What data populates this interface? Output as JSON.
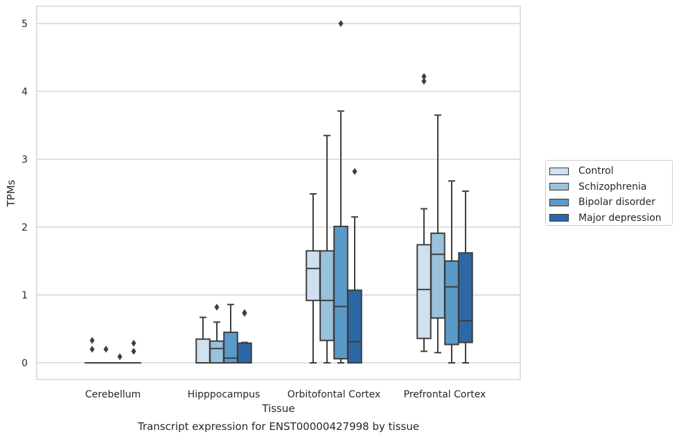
{
  "chart_data": {
    "type": "box",
    "title": "Transcript expression for ENST00000427998 by tissue",
    "xlabel": "Tissue",
    "ylabel": "TPMs",
    "ylim": [
      -0.25,
      5.25
    ],
    "yticks": [
      0,
      1,
      2,
      3,
      4,
      5
    ],
    "grid": "horizontal",
    "legend_position": "right",
    "categories": [
      "Cerebellum",
      "Hipppocampus",
      "Orbitofontal Cortex",
      "Prefrontal Cortex"
    ],
    "series": [
      {
        "name": "Control",
        "color": "#d1e0f0",
        "boxes": [
          {
            "whislo": 0,
            "q1": 0,
            "med": 0,
            "q3": 0,
            "whishi": 0,
            "fliers": [
              0.33,
              0.2
            ]
          },
          {
            "whislo": 0,
            "q1": 0,
            "med": 0,
            "q3": 0.35,
            "whishi": 0.67,
            "fliers": []
          },
          {
            "whislo": 0,
            "q1": 0.92,
            "med": 1.39,
            "q3": 1.65,
            "whishi": 2.49,
            "fliers": []
          },
          {
            "whislo": 0.17,
            "q1": 0.36,
            "med": 1.08,
            "q3": 1.74,
            "whishi": 2.27,
            "fliers": [
              4.22,
              4.15
            ]
          }
        ]
      },
      {
        "name": "Schizophrenia",
        "color": "#9ac2dc",
        "boxes": [
          {
            "whislo": 0,
            "q1": 0,
            "med": 0,
            "q3": 0,
            "whishi": 0,
            "fliers": [
              0.2
            ]
          },
          {
            "whislo": 0,
            "q1": 0,
            "med": 0.21,
            "q3": 0.32,
            "whishi": 0.6,
            "fliers": [
              0.82
            ]
          },
          {
            "whislo": 0,
            "q1": 0.33,
            "med": 0.92,
            "q3": 1.65,
            "whishi": 3.35,
            "fliers": []
          },
          {
            "whislo": 0.15,
            "q1": 0.66,
            "med": 1.6,
            "q3": 1.91,
            "whishi": 3.65,
            "fliers": []
          }
        ]
      },
      {
        "name": "Bipolar disorder",
        "color": "#5a9ac9",
        "boxes": [
          {
            "whislo": 0,
            "q1": 0,
            "med": 0,
            "q3": 0,
            "whishi": 0,
            "fliers": [
              0.09
            ]
          },
          {
            "whislo": 0,
            "q1": 0,
            "med": 0.07,
            "q3": 0.45,
            "whishi": 0.86,
            "fliers": []
          },
          {
            "whislo": 0,
            "q1": 0.06,
            "med": 0.83,
            "q3": 2.01,
            "whishi": 3.71,
            "fliers": [
              5.0
            ]
          },
          {
            "whislo": 0,
            "q1": 0.27,
            "med": 1.12,
            "q3": 1.5,
            "whishi": 2.68,
            "fliers": []
          }
        ]
      },
      {
        "name": "Major depression",
        "color": "#2c68a6",
        "boxes": [
          {
            "whislo": 0,
            "q1": 0,
            "med": 0,
            "q3": 0,
            "whishi": 0,
            "fliers": [
              0.29,
              0.17
            ]
          },
          {
            "whislo": 0,
            "q1": 0,
            "med": 0,
            "q3": 0.29,
            "whishi": 0.3,
            "fliers": [
              0.73,
              0.74
            ]
          },
          {
            "whislo": 0,
            "q1": 0,
            "med": 0.31,
            "q3": 1.07,
            "whishi": 2.15,
            "fliers": [
              2.82
            ]
          },
          {
            "whislo": 0,
            "q1": 0.3,
            "med": 0.62,
            "q3": 1.62,
            "whishi": 2.53,
            "fliers": []
          }
        ]
      }
    ]
  }
}
